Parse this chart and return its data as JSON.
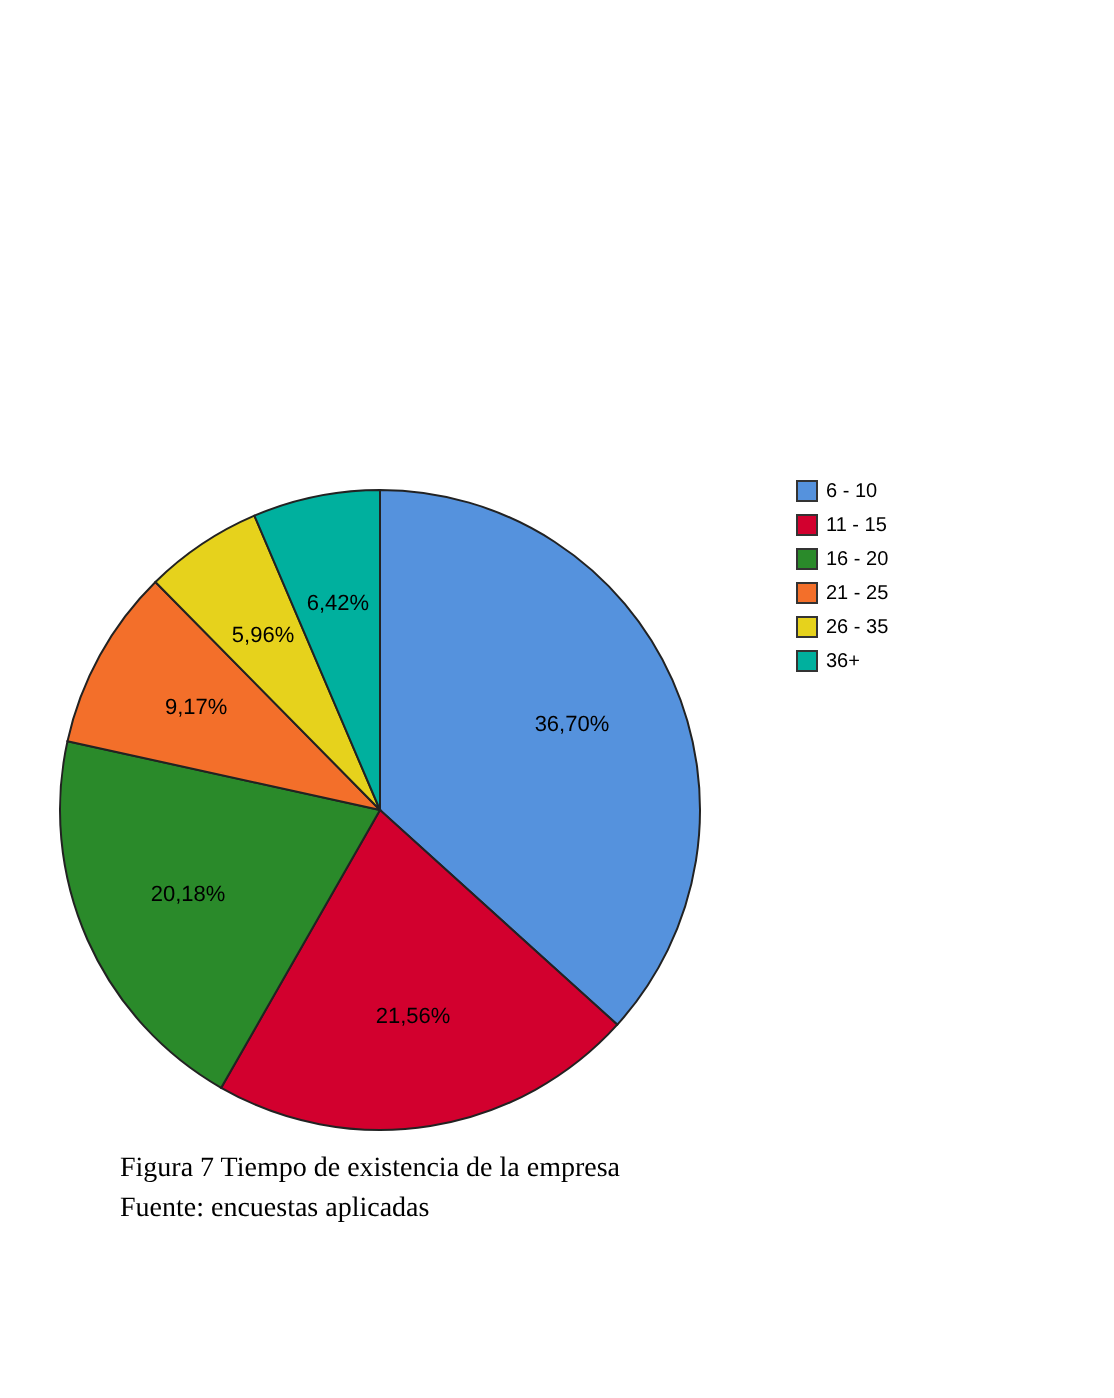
{
  "chart_data": {
    "type": "pie",
    "title": "Figura 7 Tiempo de existencia de la empresa",
    "annotations": [
      "Fuente: encuestas aplicadas"
    ],
    "categories": [
      "6 - 10",
      "11 - 15",
      "16 - 20",
      "21 - 25",
      "26 - 35",
      "36+"
    ],
    "values": [
      36.7,
      21.56,
      20.18,
      9.17,
      5.96,
      6.42
    ],
    "colors": [
      "#5592dd",
      "#d2002e",
      "#2a8a2a",
      "#f36f2a",
      "#e6d21c",
      "#00b09e"
    ],
    "value_labels": [
      "36,70%",
      "21,56%",
      "20,18%",
      "9,17%",
      "5,96%",
      "6,42%"
    ],
    "legend": "top right"
  }
}
